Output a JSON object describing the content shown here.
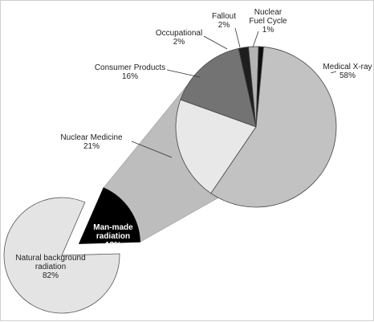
{
  "chart_data": [
    {
      "type": "pie",
      "categories": [
        "Natural background radiation",
        "Man-made radiation"
      ],
      "values": [
        82,
        18
      ],
      "value_labels": [
        "82%",
        "18%"
      ],
      "colors": [
        "#e4e4e4",
        "#000000"
      ],
      "exploded": "Man-made radiation"
    },
    {
      "type": "pie",
      "breakdown_of": "Man-made radiation",
      "categories": [
        "Medical X-ray",
        "Nuclear Medicine",
        "Consumer Products",
        "Occupational",
        "Fallout",
        "Nuclear Fuel Cycle"
      ],
      "values": [
        58,
        21,
        16,
        2,
        2,
        1
      ],
      "value_labels": [
        "58%",
        "21%",
        "16%",
        "2%",
        "2%",
        "1%"
      ],
      "colors": [
        "#c2c2c2",
        "#e8e8e8",
        "#737373",
        "#1e1e1e",
        "#b3b3b3",
        "#0e0e0e"
      ]
    }
  ],
  "connector_color": "#bdbdbd"
}
